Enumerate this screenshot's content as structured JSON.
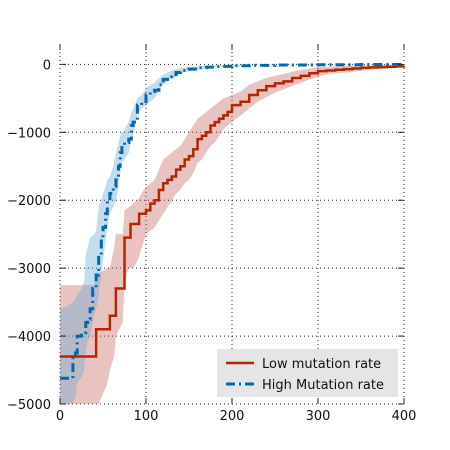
{
  "chart_data": {
    "type": "line",
    "title": "",
    "xlabel": "",
    "ylabel": "",
    "xlim": [
      0,
      400
    ],
    "ylim": [
      -5000,
      300
    ],
    "x_ticks": [
      0,
      100,
      200,
      300,
      400
    ],
    "y_ticks": [
      0,
      -1000,
      -2000,
      -3000,
      -4000,
      -5000
    ],
    "x_tick_labels": [
      "0",
      "100",
      "200",
      "300",
      "400"
    ],
    "y_tick_labels": [
      "0",
      "−1000",
      "−2000",
      "−3000",
      "−4000",
      "−5000"
    ],
    "grid": true,
    "legend_position": "lower-right",
    "series": [
      {
        "name": "Low mutation rate",
        "color": "#b52500",
        "band_color": "#c96a5f",
        "line_style": "solid",
        "mean": [
          [
            0,
            -4300
          ],
          [
            40,
            -4300
          ],
          [
            42,
            -3900
          ],
          [
            55,
            -3900
          ],
          [
            58,
            -3700
          ],
          [
            63,
            -3700
          ],
          [
            65,
            -3300
          ],
          [
            73,
            -3300
          ],
          [
            75,
            -2550
          ],
          [
            80,
            -2550
          ],
          [
            82,
            -2350
          ],
          [
            90,
            -2350
          ],
          [
            92,
            -2200
          ],
          [
            100,
            -2150
          ],
          [
            105,
            -2050
          ],
          [
            110,
            -2000
          ],
          [
            115,
            -1850
          ],
          [
            120,
            -1750
          ],
          [
            125,
            -1700
          ],
          [
            130,
            -1650
          ],
          [
            135,
            -1550
          ],
          [
            140,
            -1500
          ],
          [
            145,
            -1400
          ],
          [
            150,
            -1350
          ],
          [
            155,
            -1250
          ],
          [
            160,
            -1100
          ],
          [
            165,
            -1050
          ],
          [
            170,
            -1000
          ],
          [
            175,
            -900
          ],
          [
            180,
            -850
          ],
          [
            185,
            -800
          ],
          [
            190,
            -750
          ],
          [
            195,
            -700
          ],
          [
            200,
            -600
          ],
          [
            210,
            -550
          ],
          [
            220,
            -450
          ],
          [
            230,
            -380
          ],
          [
            240,
            -320
          ],
          [
            250,
            -280
          ],
          [
            260,
            -250
          ],
          [
            270,
            -200
          ],
          [
            280,
            -170
          ],
          [
            290,
            -130
          ],
          [
            300,
            -100
          ],
          [
            310,
            -90
          ],
          [
            320,
            -80
          ],
          [
            330,
            -70
          ],
          [
            340,
            -60
          ],
          [
            350,
            -50
          ],
          [
            360,
            -45
          ],
          [
            370,
            -40
          ],
          [
            380,
            -35
          ],
          [
            390,
            -30
          ],
          [
            400,
            -25
          ]
        ],
        "upper": [
          [
            0,
            -3250
          ],
          [
            40,
            -3250
          ],
          [
            42,
            -3100
          ],
          [
            55,
            -3000
          ],
          [
            58,
            -3000
          ],
          [
            63,
            -2700
          ],
          [
            65,
            -2500
          ],
          [
            73,
            -2500
          ],
          [
            75,
            -2150
          ],
          [
            80,
            -2100
          ],
          [
            90,
            -2000
          ],
          [
            95,
            -1900
          ],
          [
            100,
            -1800
          ],
          [
            110,
            -1700
          ],
          [
            115,
            -1550
          ],
          [
            120,
            -1400
          ],
          [
            125,
            -1350
          ],
          [
            130,
            -1300
          ],
          [
            135,
            -1250
          ],
          [
            140,
            -1200
          ],
          [
            145,
            -1100
          ],
          [
            150,
            -1000
          ],
          [
            155,
            -900
          ],
          [
            160,
            -800
          ],
          [
            165,
            -750
          ],
          [
            170,
            -700
          ],
          [
            175,
            -650
          ],
          [
            180,
            -600
          ],
          [
            185,
            -550
          ],
          [
            190,
            -500
          ],
          [
            200,
            -450
          ],
          [
            210,
            -400
          ],
          [
            220,
            -300
          ],
          [
            230,
            -250
          ],
          [
            240,
            -200
          ],
          [
            250,
            -170
          ],
          [
            260,
            -140
          ],
          [
            270,
            -110
          ],
          [
            280,
            -80
          ],
          [
            290,
            -60
          ],
          [
            300,
            -40
          ],
          [
            320,
            -30
          ],
          [
            340,
            -20
          ],
          [
            360,
            -15
          ],
          [
            380,
            -10
          ],
          [
            400,
            -5
          ]
        ],
        "lower": [
          [
            0,
            -5000
          ],
          [
            40,
            -5000
          ],
          [
            45,
            -5000
          ],
          [
            55,
            -4700
          ],
          [
            58,
            -4500
          ],
          [
            63,
            -4300
          ],
          [
            65,
            -4000
          ],
          [
            73,
            -3800
          ],
          [
            75,
            -3200
          ],
          [
            80,
            -3000
          ],
          [
            85,
            -3000
          ],
          [
            90,
            -2900
          ],
          [
            95,
            -2700
          ],
          [
            100,
            -2500
          ],
          [
            110,
            -2400
          ],
          [
            115,
            -2300
          ],
          [
            120,
            -2200
          ],
          [
            125,
            -2100
          ],
          [
            130,
            -2000
          ],
          [
            135,
            -1900
          ],
          [
            140,
            -1850
          ],
          [
            145,
            -1750
          ],
          [
            150,
            -1700
          ],
          [
            155,
            -1600
          ],
          [
            160,
            -1450
          ],
          [
            165,
            -1400
          ],
          [
            170,
            -1300
          ],
          [
            175,
            -1200
          ],
          [
            180,
            -1150
          ],
          [
            185,
            -1050
          ],
          [
            190,
            -950
          ],
          [
            200,
            -850
          ],
          [
            210,
            -750
          ],
          [
            220,
            -650
          ],
          [
            230,
            -550
          ],
          [
            240,
            -480
          ],
          [
            250,
            -420
          ],
          [
            260,
            -370
          ],
          [
            270,
            -320
          ],
          [
            280,
            -270
          ],
          [
            290,
            -220
          ],
          [
            300,
            -180
          ],
          [
            310,
            -150
          ],
          [
            320,
            -130
          ],
          [
            330,
            -120
          ],
          [
            340,
            -110
          ],
          [
            350,
            -95
          ],
          [
            360,
            -80
          ],
          [
            370,
            -70
          ],
          [
            380,
            -60
          ],
          [
            390,
            -50
          ],
          [
            400,
            -45
          ]
        ]
      },
      {
        "name": "High Mutation rate",
        "color": "#006aad",
        "band_color": "#6aa9d8",
        "line_style": "dashdot",
        "mean": [
          [
            0,
            -4620
          ],
          [
            10,
            -4620
          ],
          [
            12,
            -4620
          ],
          [
            15,
            -4300
          ],
          [
            18,
            -4250
          ],
          [
            20,
            -4000
          ],
          [
            25,
            -3950
          ],
          [
            28,
            -3950
          ],
          [
            30,
            -3800
          ],
          [
            32,
            -3750
          ],
          [
            35,
            -3600
          ],
          [
            38,
            -3300
          ],
          [
            42,
            -3100
          ],
          [
            45,
            -2800
          ],
          [
            48,
            -2600
          ],
          [
            50,
            -2400
          ],
          [
            53,
            -2200
          ],
          [
            55,
            -2000
          ],
          [
            58,
            -1900
          ],
          [
            62,
            -1800
          ],
          [
            65,
            -1700
          ],
          [
            68,
            -1500
          ],
          [
            70,
            -1300
          ],
          [
            72,
            -1200
          ],
          [
            75,
            -1150
          ],
          [
            80,
            -1100
          ],
          [
            83,
            -900
          ],
          [
            85,
            -850
          ],
          [
            90,
            -600
          ],
          [
            95,
            -550
          ],
          [
            100,
            -450
          ],
          [
            105,
            -400
          ],
          [
            110,
            -380
          ],
          [
            115,
            -300
          ],
          [
            120,
            -220
          ],
          [
            125,
            -180
          ],
          [
            130,
            -150
          ],
          [
            135,
            -120
          ],
          [
            140,
            -90
          ],
          [
            150,
            -70
          ],
          [
            160,
            -50
          ],
          [
            170,
            -40
          ],
          [
            180,
            -30
          ],
          [
            200,
            -20
          ],
          [
            220,
            -15
          ],
          [
            250,
            -10
          ],
          [
            300,
            -5
          ],
          [
            350,
            -2
          ],
          [
            400,
            0
          ]
        ],
        "upper": [
          [
            0,
            -3600
          ],
          [
            10,
            -3550
          ],
          [
            15,
            -3500
          ],
          [
            20,
            -3400
          ],
          [
            25,
            -3300
          ],
          [
            28,
            -3200
          ],
          [
            30,
            -2800
          ],
          [
            32,
            -2700
          ],
          [
            35,
            -2550
          ],
          [
            40,
            -2500
          ],
          [
            42,
            -2450
          ],
          [
            45,
            -2100
          ],
          [
            48,
            -2000
          ],
          [
            50,
            -1900
          ],
          [
            53,
            -1800
          ],
          [
            55,
            -1700
          ],
          [
            58,
            -1650
          ],
          [
            62,
            -1500
          ],
          [
            65,
            -1300
          ],
          [
            68,
            -1150
          ],
          [
            70,
            -1050
          ],
          [
            72,
            -1000
          ],
          [
            75,
            -950
          ],
          [
            80,
            -850
          ],
          [
            83,
            -700
          ],
          [
            85,
            -650
          ],
          [
            90,
            -500
          ],
          [
            95,
            -450
          ],
          [
            100,
            -350
          ],
          [
            105,
            -300
          ],
          [
            110,
            -270
          ],
          [
            115,
            -200
          ],
          [
            120,
            -150
          ],
          [
            125,
            -120
          ],
          [
            130,
            -90
          ],
          [
            135,
            -70
          ],
          [
            140,
            -50
          ],
          [
            150,
            -40
          ],
          [
            160,
            -30
          ],
          [
            170,
            -20
          ],
          [
            180,
            -15
          ],
          [
            200,
            -10
          ],
          [
            250,
            -5
          ],
          [
            300,
            -2
          ],
          [
            350,
            0
          ],
          [
            400,
            0
          ]
        ],
        "lower": [
          [
            0,
            -5000
          ],
          [
            10,
            -5000
          ],
          [
            12,
            -5000
          ],
          [
            15,
            -5000
          ],
          [
            18,
            -4900
          ],
          [
            20,
            -4700
          ],
          [
            25,
            -4600
          ],
          [
            28,
            -4500
          ],
          [
            30,
            -4200
          ],
          [
            32,
            -4100
          ],
          [
            35,
            -4000
          ],
          [
            38,
            -3800
          ],
          [
            42,
            -3600
          ],
          [
            45,
            -3400
          ],
          [
            48,
            -3100
          ],
          [
            50,
            -2900
          ],
          [
            53,
            -2600
          ],
          [
            55,
            -2400
          ],
          [
            58,
            -2200
          ],
          [
            62,
            -2100
          ],
          [
            65,
            -2000
          ],
          [
            68,
            -1800
          ],
          [
            70,
            -1600
          ],
          [
            72,
            -1450
          ],
          [
            75,
            -1400
          ],
          [
            80,
            -1300
          ],
          [
            83,
            -1100
          ],
          [
            85,
            -1050
          ],
          [
            90,
            -750
          ],
          [
            95,
            -650
          ],
          [
            100,
            -600
          ],
          [
            105,
            -550
          ],
          [
            110,
            -500
          ],
          [
            115,
            -400
          ],
          [
            120,
            -300
          ],
          [
            125,
            -250
          ],
          [
            130,
            -200
          ],
          [
            135,
            -170
          ],
          [
            140,
            -130
          ],
          [
            150,
            -100
          ],
          [
            160,
            -80
          ],
          [
            170,
            -60
          ],
          [
            180,
            -50
          ],
          [
            200,
            -35
          ],
          [
            220,
            -25
          ],
          [
            250,
            -18
          ],
          [
            300,
            -10
          ],
          [
            350,
            -5
          ],
          [
            400,
            -2
          ]
        ]
      }
    ]
  }
}
